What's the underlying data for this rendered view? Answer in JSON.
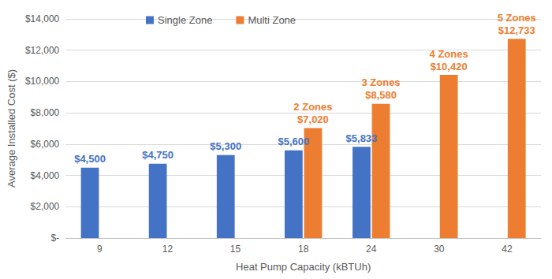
{
  "chart_data": {
    "type": "bar",
    "x_label": "Heat Pump Capacity (kBTUh)",
    "y_label": "Average Installed Cost ($)",
    "categories": [
      "9",
      "12",
      "15",
      "18",
      "24",
      "30",
      "42"
    ],
    "series": [
      {
        "name": "Single Zone",
        "color": "#4472c4",
        "values": [
          4500,
          4750,
          5300,
          5600,
          5833,
          null,
          null
        ],
        "value_labels": [
          "$4,500",
          "$4,750",
          "$5,300",
          "$5,600",
          "$5,833",
          null,
          null
        ]
      },
      {
        "name": "Multi Zone",
        "color": "#ed7d31",
        "values": [
          null,
          null,
          null,
          7020,
          8580,
          10420,
          12733
        ],
        "value_labels": [
          null,
          null,
          null,
          "$7,020",
          "$8,580",
          "$10,420",
          "$12,733"
        ],
        "zone_labels": [
          null,
          null,
          null,
          "2 Zones",
          "3 Zones",
          "4 Zones",
          "5 Zones"
        ]
      }
    ],
    "ylim": [
      0,
      14000
    ],
    "yticks": [
      {
        "value": 0,
        "label": "$-"
      },
      {
        "value": 2000,
        "label": "$2,000"
      },
      {
        "value": 4000,
        "label": "$4,000"
      },
      {
        "value": 6000,
        "label": "$6,000"
      },
      {
        "value": 8000,
        "label": "$8,000"
      },
      {
        "value": 10000,
        "label": "$10,000"
      },
      {
        "value": 12000,
        "label": "$12,000"
      },
      {
        "value": 14000,
        "label": "$14,000"
      }
    ],
    "grid": true,
    "legend": "top-left",
    "data_labels": true
  }
}
